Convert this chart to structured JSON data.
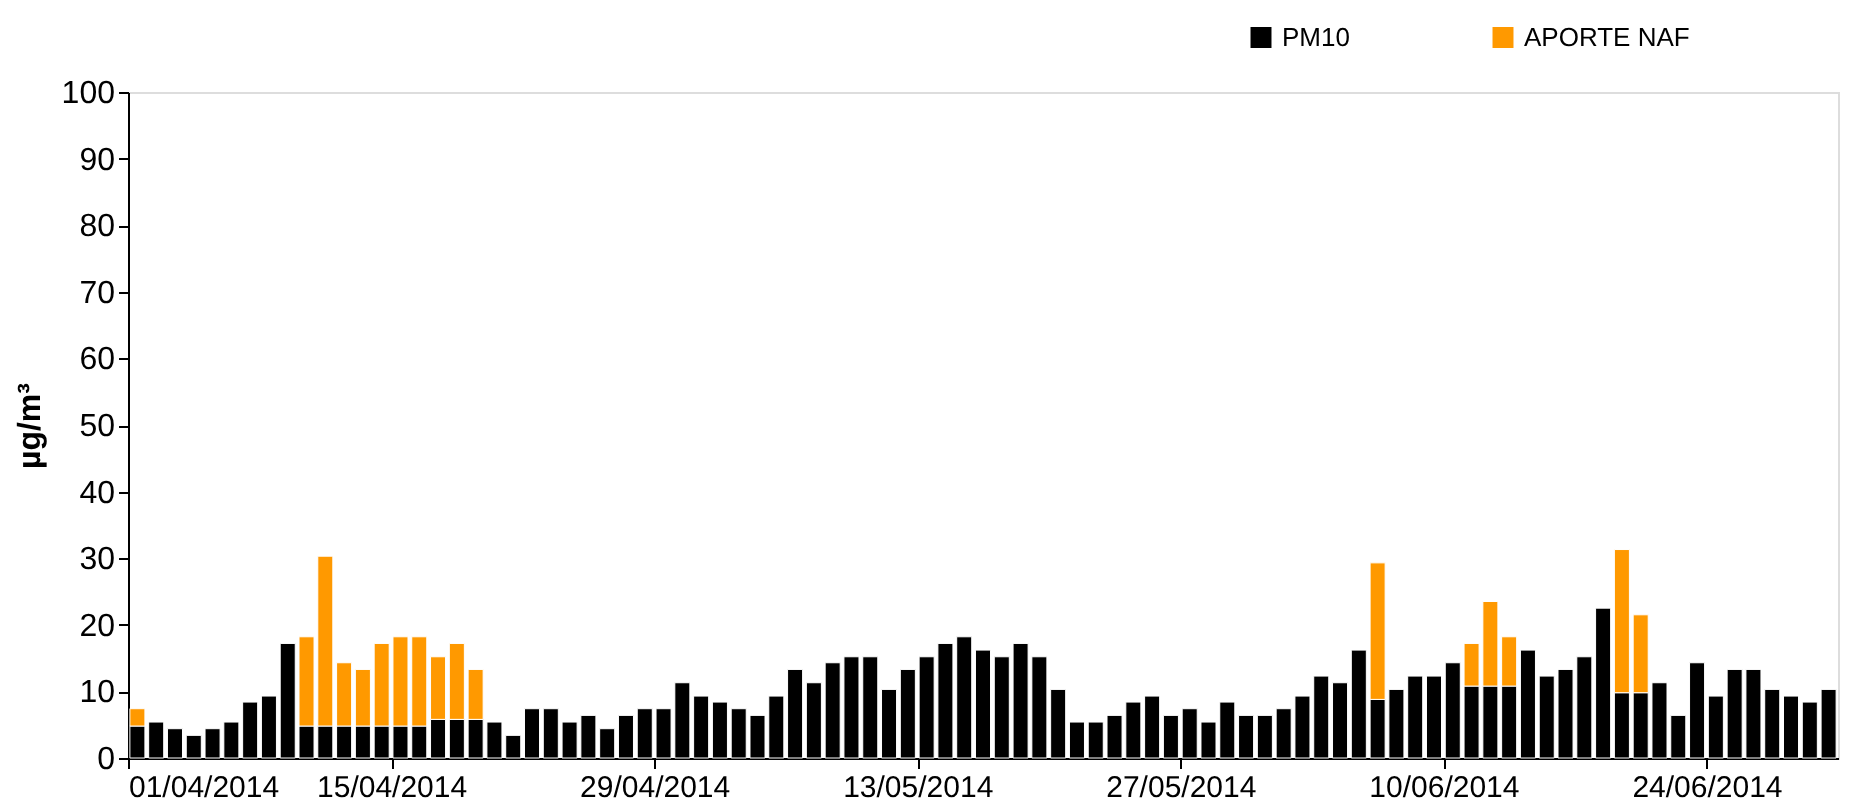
{
  "chart_data": {
    "type": "bar",
    "stacked": true,
    "ylabel": "µg/m³",
    "x": [
      "2014-04-01",
      "2014-04-02",
      "2014-04-03",
      "2014-04-04",
      "2014-04-05",
      "2014-04-06",
      "2014-04-07",
      "2014-04-08",
      "2014-04-09",
      "2014-04-10",
      "2014-04-11",
      "2014-04-12",
      "2014-04-13",
      "2014-04-14",
      "2014-04-15",
      "2014-04-16",
      "2014-04-17",
      "2014-04-18",
      "2014-04-19",
      "2014-04-20",
      "2014-04-21",
      "2014-04-22",
      "2014-04-23",
      "2014-04-24",
      "2014-04-25",
      "2014-04-26",
      "2014-04-27",
      "2014-04-28",
      "2014-04-29",
      "2014-04-30",
      "2014-05-01",
      "2014-05-02",
      "2014-05-03",
      "2014-05-04",
      "2014-05-05",
      "2014-05-06",
      "2014-05-07",
      "2014-05-08",
      "2014-05-09",
      "2014-05-10",
      "2014-05-11",
      "2014-05-12",
      "2014-05-13",
      "2014-05-14",
      "2014-05-15",
      "2014-05-16",
      "2014-05-17",
      "2014-05-18",
      "2014-05-19",
      "2014-05-20",
      "2014-05-21",
      "2014-05-22",
      "2014-05-23",
      "2014-05-24",
      "2014-05-25",
      "2014-05-26",
      "2014-05-27",
      "2014-05-28",
      "2014-05-29",
      "2014-05-30",
      "2014-05-31",
      "2014-06-01",
      "2014-06-02",
      "2014-06-03",
      "2014-06-04",
      "2014-06-05",
      "2014-06-06",
      "2014-06-07",
      "2014-06-08",
      "2014-06-09",
      "2014-06-10",
      "2014-06-11",
      "2014-06-12",
      "2014-06-13",
      "2014-06-14",
      "2014-06-15",
      "2014-06-16",
      "2014-06-17",
      "2014-06-18",
      "2014-06-19",
      "2014-06-20",
      "2014-06-21",
      "2014-06-22",
      "2014-06-23",
      "2014-06-24",
      "2014-06-25",
      "2014-06-26",
      "2014-06-27",
      "2014-06-28",
      "2014-06-29",
      "2014-06-30"
    ],
    "series": [
      {
        "name": "PM10",
        "color": "#000000",
        "values": [
          4.8,
          5.4,
          4.4,
          3.4,
          4.4,
          5.4,
          8.4,
          9.3,
          17.2,
          4.8,
          4.8,
          4.8,
          4.8,
          4.8,
          4.8,
          4.8,
          5.8,
          5.8,
          5.8,
          5.4,
          3.4,
          7.4,
          7.4,
          5.4,
          6.4,
          4.4,
          6.4,
          7.4,
          7.4,
          11.3,
          9.3,
          8.4,
          7.4,
          6.4,
          9.3,
          13.3,
          11.3,
          14.3,
          15.2,
          15.2,
          10.3,
          13.3,
          15.2,
          17.2,
          18.2,
          16.2,
          15.2,
          17.2,
          15.2,
          10.3,
          5.4,
          5.4,
          6.4,
          8.4,
          9.3,
          6.4,
          7.4,
          5.4,
          8.4,
          6.4,
          6.4,
          7.4,
          9.3,
          12.3,
          11.3,
          16.2,
          8.8,
          10.3,
          12.3,
          12.3,
          14.3,
          10.8,
          10.8,
          10.8,
          16.2,
          12.3,
          13.3,
          15.2,
          22.5,
          9.8,
          9.8,
          11.3,
          6.4,
          14.3,
          9.3,
          13.3,
          13.3,
          10.3,
          9.3,
          8.4,
          10.3
        ]
      },
      {
        "name": "APORTE NAF",
        "color": "#ff9900",
        "values": [
          2.6,
          null,
          null,
          null,
          null,
          null,
          null,
          null,
          null,
          13.4,
          25.5,
          9.5,
          8.5,
          12.4,
          13.4,
          13.4,
          9.4,
          11.4,
          7.5,
          null,
          null,
          null,
          null,
          null,
          null,
          null,
          null,
          null,
          null,
          null,
          null,
          null,
          null,
          null,
          null,
          null,
          null,
          null,
          null,
          null,
          null,
          null,
          null,
          null,
          null,
          null,
          null,
          null,
          null,
          null,
          null,
          null,
          null,
          null,
          null,
          null,
          null,
          null,
          null,
          null,
          null,
          null,
          null,
          null,
          null,
          null,
          20.5,
          null,
          null,
          null,
          null,
          6.4,
          12.7,
          7.4,
          null,
          null,
          null,
          null,
          null,
          21.5,
          11.7,
          null,
          null,
          null,
          null,
          null,
          null,
          null,
          null,
          null,
          null
        ]
      }
    ],
    "xlim": [
      "2014-04-01",
      "2014-07-01"
    ],
    "xticks": [
      {
        "value": "2014-04-01",
        "label": "01/04/2014"
      },
      {
        "value": "2014-04-15",
        "label": "15/04/2014"
      },
      {
        "value": "2014-04-29",
        "label": "29/04/2014"
      },
      {
        "value": "2014-05-13",
        "label": "13/05/2014"
      },
      {
        "value": "2014-05-27",
        "label": "27/05/2014"
      },
      {
        "value": "2014-06-10",
        "label": "10/06/2014"
      },
      {
        "value": "2014-06-24",
        "label": "24/06/2014"
      }
    ],
    "ylim": [
      0,
      100
    ],
    "yticks": [
      0,
      10,
      20,
      30,
      40,
      50,
      60,
      70,
      80,
      90,
      100
    ],
    "grid": false,
    "legend": "top right"
  }
}
